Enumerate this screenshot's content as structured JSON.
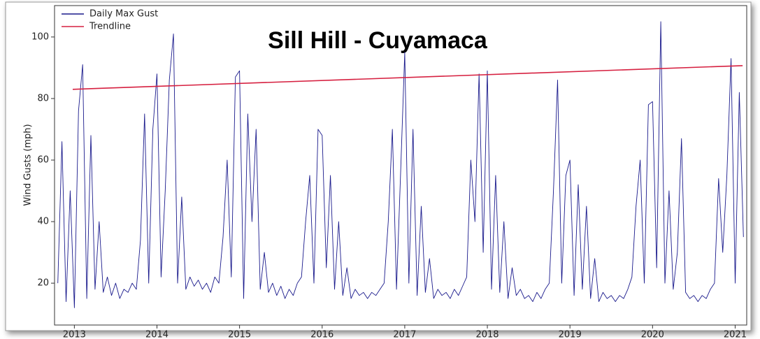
{
  "chart_data": {
    "type": "line",
    "title": "Sill Hill - Cuyamaca",
    "y_label": "Wind Gusts (mph)",
    "xlim": [
      2012.76,
      2021.14
    ],
    "xticks": [
      2013,
      2014,
      2015,
      2016,
      2017,
      2018,
      2019,
      2020,
      2021
    ],
    "ylim": [
      6.4,
      110.2
    ],
    "yticks": [
      20,
      40,
      60,
      80,
      100
    ],
    "legend": "upper left",
    "series": [
      {
        "name": "Daily Max Gust",
        "color": "#1a1a8c",
        "x": [
          2012.8,
          2012.85,
          2012.9,
          2012.95,
          2013.0,
          2013.05,
          2013.1,
          2013.15,
          2013.2,
          2013.25,
          2013.3,
          2013.35,
          2013.4,
          2013.45,
          2013.5,
          2013.55,
          2013.6,
          2013.65,
          2013.7,
          2013.75,
          2013.8,
          2013.85,
          2013.9,
          2013.95,
          2014.0,
          2014.05,
          2014.1,
          2014.15,
          2014.2,
          2014.25,
          2014.3,
          2014.35,
          2014.4,
          2014.45,
          2014.5,
          2014.55,
          2014.6,
          2014.65,
          2014.7,
          2014.75,
          2014.8,
          2014.85,
          2014.9,
          2014.95,
          2015.0,
          2015.05,
          2015.1,
          2015.15,
          2015.2,
          2015.25,
          2015.3,
          2015.35,
          2015.4,
          2015.45,
          2015.5,
          2015.55,
          2015.6,
          2015.65,
          2015.7,
          2015.75,
          2015.8,
          2015.85,
          2015.9,
          2015.95,
          2016.0,
          2016.05,
          2016.1,
          2016.15,
          2016.2,
          2016.25,
          2016.3,
          2016.35,
          2016.4,
          2016.45,
          2016.5,
          2016.55,
          2016.6,
          2016.65,
          2016.7,
          2016.75,
          2016.8,
          2016.85,
          2016.9,
          2016.95,
          2017.0,
          2017.05,
          2017.1,
          2017.15,
          2017.2,
          2017.25,
          2017.3,
          2017.35,
          2017.4,
          2017.45,
          2017.5,
          2017.55,
          2017.6,
          2017.65,
          2017.7,
          2017.75,
          2017.8,
          2017.85,
          2017.9,
          2017.95,
          2018.0,
          2018.05,
          2018.1,
          2018.15,
          2018.2,
          2018.25,
          2018.3,
          2018.35,
          2018.4,
          2018.45,
          2018.5,
          2018.55,
          2018.6,
          2018.65,
          2018.7,
          2018.75,
          2018.8,
          2018.85,
          2018.9,
          2018.95,
          2019.0,
          2019.05,
          2019.1,
          2019.15,
          2019.2,
          2019.25,
          2019.3,
          2019.35,
          2019.4,
          2019.45,
          2019.5,
          2019.55,
          2019.6,
          2019.65,
          2019.7,
          2019.75,
          2019.8,
          2019.85,
          2019.9,
          2019.95,
          2020.0,
          2020.05,
          2020.1,
          2020.15,
          2020.2,
          2020.25,
          2020.3,
          2020.35,
          2020.4,
          2020.45,
          2020.5,
          2020.55,
          2020.6,
          2020.65,
          2020.7,
          2020.75,
          2020.8,
          2020.85,
          2020.9,
          2020.95,
          2021.0,
          2021.05,
          2021.1
        ],
        "values": [
          20,
          66,
          14,
          50,
          12,
          76,
          91,
          15,
          68,
          18,
          40,
          17,
          22,
          16,
          20,
          15,
          18,
          17,
          20,
          18,
          34,
          75,
          20,
          70,
          88,
          22,
          50,
          86,
          101,
          20,
          48,
          18,
          22,
          19,
          21,
          18,
          20,
          17,
          22,
          20,
          35,
          60,
          22,
          87,
          89,
          15,
          75,
          40,
          70,
          18,
          30,
          17,
          20,
          16,
          19,
          15,
          18,
          16,
          20,
          22,
          40,
          55,
          20,
          70,
          68,
          25,
          55,
          18,
          40,
          16,
          25,
          15,
          18,
          16,
          17,
          15,
          17,
          16,
          18,
          20,
          40,
          70,
          18,
          56,
          95,
          20,
          70,
          16,
          45,
          17,
          28,
          15,
          18,
          16,
          17,
          15,
          18,
          16,
          19,
          22,
          60,
          40,
          88,
          30,
          89,
          18,
          55,
          17,
          40,
          15,
          25,
          16,
          18,
          15,
          16,
          14,
          17,
          15,
          18,
          20,
          50,
          86,
          20,
          55,
          60,
          16,
          52,
          18,
          45,
          15,
          28,
          14,
          17,
          15,
          16,
          14,
          16,
          15,
          18,
          22,
          45,
          60,
          20,
          78,
          79,
          25,
          105,
          20,
          50,
          18,
          30,
          67,
          17,
          15,
          16,
          14,
          16,
          15,
          18,
          20,
          54,
          30,
          55,
          93,
          20,
          82,
          35
        ]
      },
      {
        "name": "Trendline",
        "color": "#d62040",
        "x": [
          2012.98,
          2021.09
        ],
        "values": [
          83,
          90.7
        ]
      }
    ]
  }
}
